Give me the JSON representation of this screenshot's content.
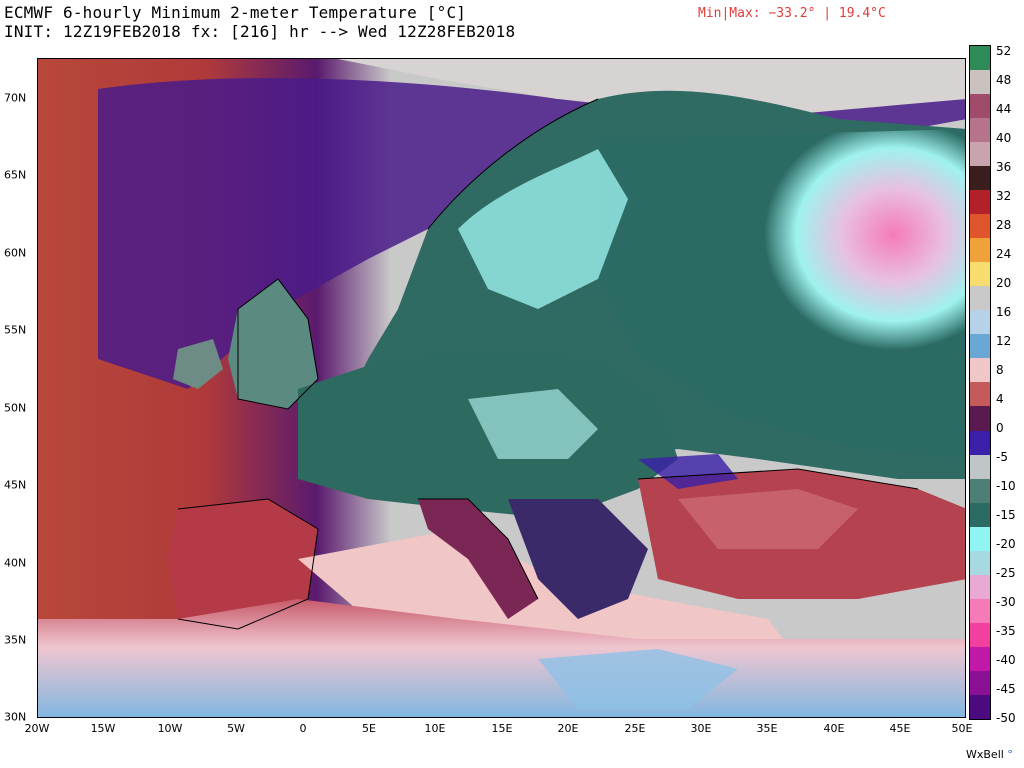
{
  "header": {
    "title_line1": "ECMWF 6-hourly Minimum 2-meter Temperature [°C]",
    "title_line2": "INIT: 12Z19FEB2018 fx: [216] hr --> Wed 12Z28FEB2018",
    "minmax": "Min|Max: −33.2° | 19.4°C"
  },
  "map": {
    "lat_labels": [
      "70N",
      "65N",
      "60N",
      "55N",
      "50N",
      "45N",
      "40N",
      "35N",
      "30N"
    ],
    "lon_labels": [
      "20W",
      "15W",
      "10W",
      "5W",
      "0",
      "5E",
      "10E",
      "15E",
      "20E",
      "25E",
      "30E",
      "35E",
      "40E",
      "45E",
      "50E"
    ]
  },
  "colorbar": {
    "labels": [
      "52",
      "48",
      "44",
      "40",
      "36",
      "32",
      "28",
      "24",
      "20",
      "16",
      "12",
      "8",
      "4",
      "0",
      "-5",
      "-10",
      "-15",
      "-20",
      "-25",
      "-30",
      "-35",
      "-40",
      "-45",
      "-50"
    ],
    "colors": [
      "#2e8b57",
      "#c9c2bf",
      "#a14b6b",
      "#b5738c",
      "#c9a3ae",
      "#3a1d1d",
      "#b3202a",
      "#e0552b",
      "#f0a23a",
      "#f7dc6f",
      "#c9c9c9",
      "#b7d2e8",
      "#6aa7d4",
      "#f1c6c6",
      "#c55a5a",
      "#5a1a4f",
      "#3b1fa8",
      "#c0c6c6",
      "#4d7f78",
      "#2b6b64",
      "#8ff4f2",
      "#a7d9e0",
      "#e8a9d4",
      "#f57bb8",
      "#f23fa0",
      "#c218a8",
      "#8a1196",
      "#4b0a7e"
    ]
  },
  "branding": {
    "name": "WxBell"
  }
}
